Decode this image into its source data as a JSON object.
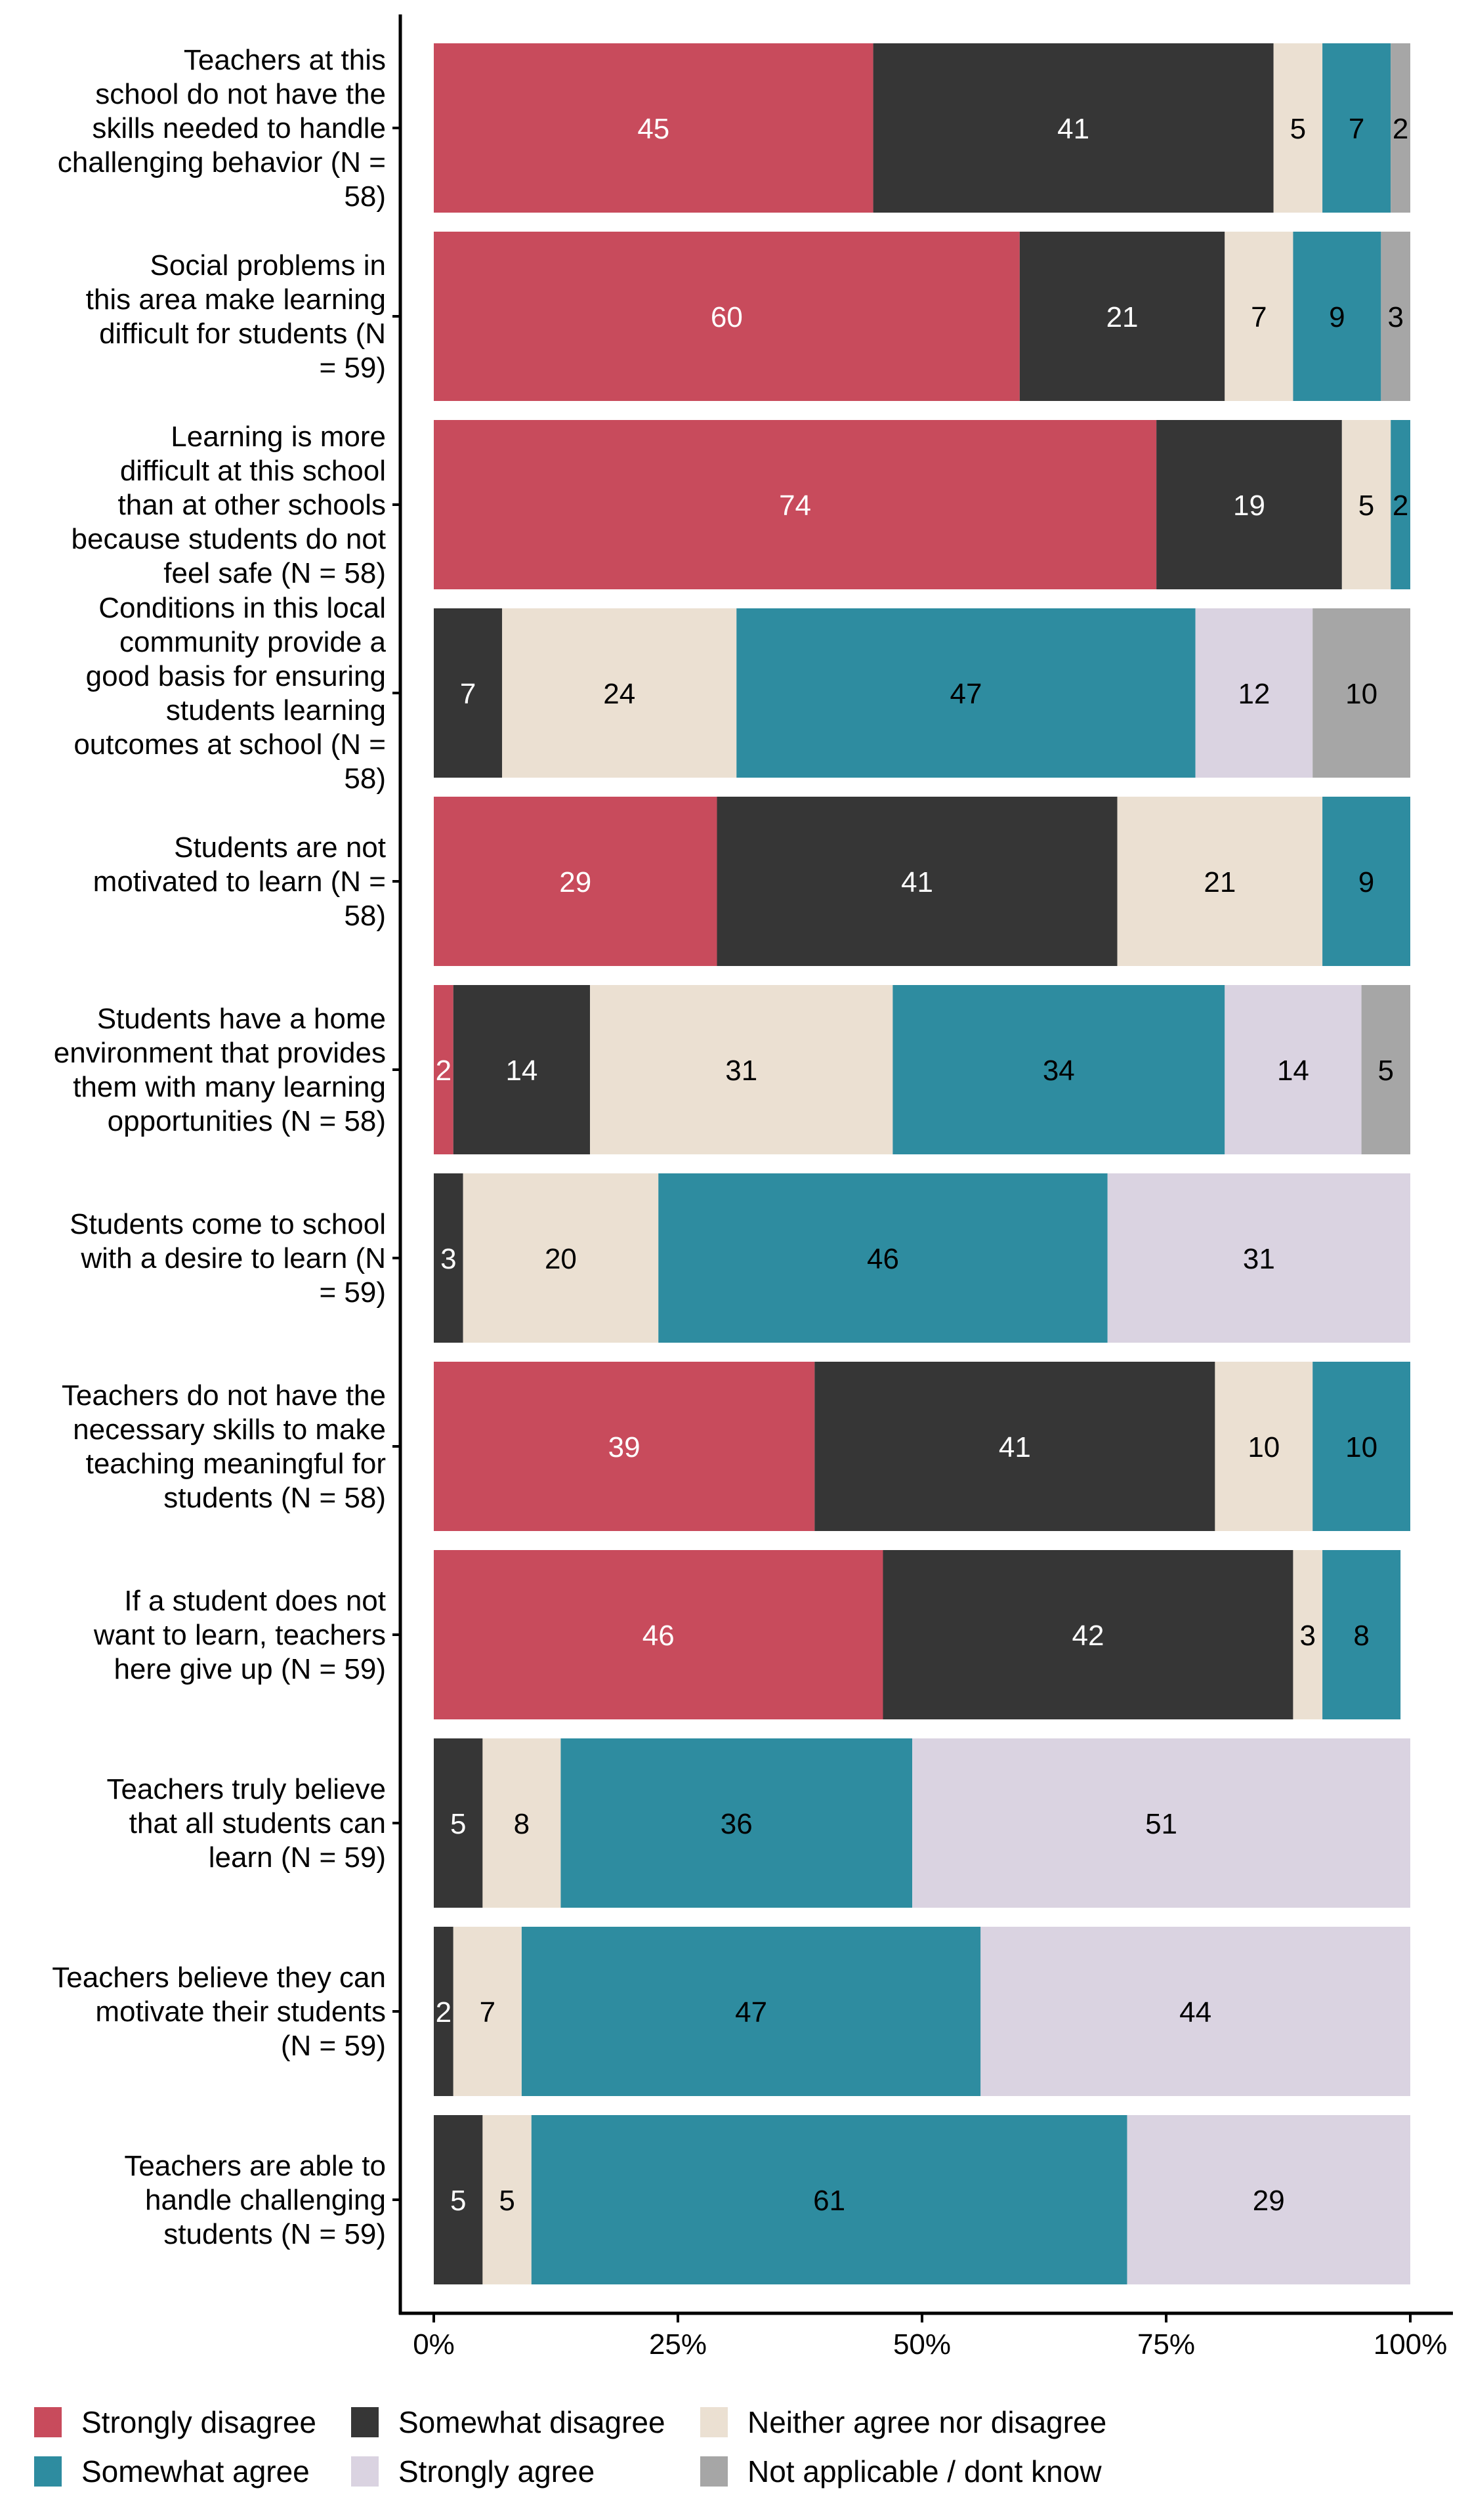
{
  "chart_data": {
    "type": "bar",
    "orientation": "horizontal",
    "stacked": true,
    "title": "",
    "xlabel": "",
    "ylabel": "",
    "xlim": [
      0,
      100
    ],
    "x_ticks": [
      "0%",
      "25%",
      "50%",
      "75%",
      "100%"
    ],
    "x_tick_values": [
      0,
      25,
      50,
      75,
      100
    ],
    "grid": false,
    "legend_position": "bottom",
    "series": [
      {
        "name": "Strongly disagree",
        "color": "#c84b5c",
        "label_color": "#ffffff"
      },
      {
        "name": "Somewhat disagree",
        "color": "#363636",
        "label_color": "#ffffff"
      },
      {
        "name": "Neither agree nor disagree",
        "color": "#ebe0d2",
        "label_color": "#000000"
      },
      {
        "name": "Somewhat agree",
        "color": "#2e8ca0",
        "label_color": "#000000"
      },
      {
        "name": "Strongly agree",
        "color": "#dad3e1",
        "label_color": "#000000"
      },
      {
        "name": "Not applicable / dont know",
        "color": "#a6a6a6",
        "label_color": "#000000"
      }
    ],
    "categories": [
      {
        "label_lines": [
          "Teachers at this",
          "school do not have the",
          "skills needed to handle",
          "challenging behavior (N =",
          "58)"
        ],
        "values": [
          45,
          41,
          5,
          7,
          0,
          2
        ]
      },
      {
        "label_lines": [
          "Social problems in",
          "this area make learning",
          "difficult for students (N",
          "= 59)"
        ],
        "values": [
          60,
          21,
          7,
          9,
          0,
          3
        ]
      },
      {
        "label_lines": [
          "Learning is more",
          "difficult at this school",
          "than at other schools",
          "because students do not",
          "feel safe (N = 58)"
        ],
        "values": [
          74,
          19,
          5,
          2,
          0,
          0
        ]
      },
      {
        "label_lines": [
          "Conditions in this local",
          "community provide a",
          "good basis for ensuring",
          "students learning",
          "outcomes at school (N =",
          "58)"
        ],
        "values": [
          0,
          7,
          24,
          47,
          12,
          10
        ]
      },
      {
        "label_lines": [
          "Students are not",
          "motivated to learn (N =",
          "58)"
        ],
        "values": [
          29,
          41,
          21,
          9,
          0,
          0
        ]
      },
      {
        "label_lines": [
          "Students have a home",
          "environment that provides",
          "them with many learning",
          "opportunities (N = 58)"
        ],
        "values": [
          2,
          14,
          31,
          34,
          14,
          5
        ]
      },
      {
        "label_lines": [
          "Students come to school",
          "with a desire to learn (N",
          "= 59)"
        ],
        "values": [
          0,
          3,
          20,
          46,
          31,
          0
        ]
      },
      {
        "label_lines": [
          "Teachers do not have the",
          "necessary skills to make",
          "teaching meaningful for",
          "students (N = 58)"
        ],
        "values": [
          39,
          41,
          10,
          10,
          0,
          0
        ]
      },
      {
        "label_lines": [
          "If a student does not",
          "want to learn, teachers",
          "here give up (N = 59)"
        ],
        "values": [
          46,
          42,
          3,
          8,
          0,
          0
        ]
      },
      {
        "label_lines": [
          "Teachers truly believe",
          "that all students can",
          "learn (N = 59)"
        ],
        "values": [
          0,
          5,
          8,
          36,
          51,
          0
        ]
      },
      {
        "label_lines": [
          "Teachers believe they can",
          "motivate their students",
          "(N = 59)"
        ],
        "values": [
          0,
          2,
          7,
          47,
          44,
          0
        ]
      },
      {
        "label_lines": [
          "Teachers are able to",
          "handle challenging",
          "students (N = 59)"
        ],
        "values": [
          0,
          5,
          5,
          61,
          29,
          0
        ]
      }
    ]
  }
}
